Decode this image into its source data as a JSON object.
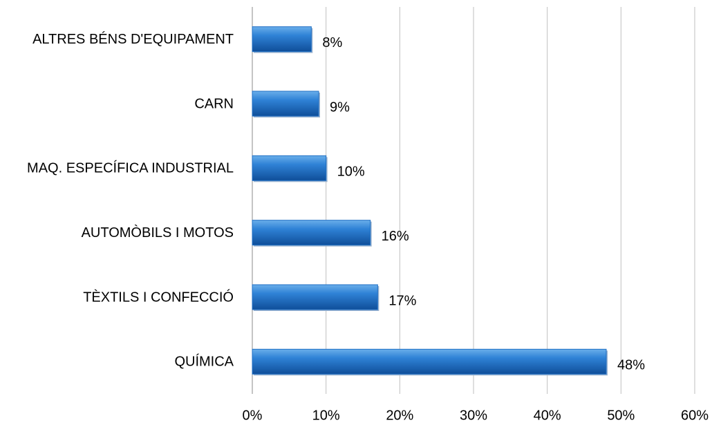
{
  "chart_data": {
    "type": "bar",
    "orientation": "horizontal",
    "categories": [
      "ALTRES BÉNS D'EQUIPAMENT",
      "CARN",
      "MAQ. ESPECÍFICA INDUSTRIAL",
      "AUTOMÒBILS I MOTOS",
      "TÈXTILS I CONFECCIÓ",
      "QUÍMICA"
    ],
    "values": [
      8,
      9,
      10,
      16,
      17,
      48
    ],
    "value_labels": [
      "8%",
      "9%",
      "10%",
      "16%",
      "17%",
      "48%"
    ],
    "color": "#1f6fc4",
    "xlim": [
      0,
      60
    ],
    "xticks": [
      {
        "value": 0,
        "label": "0%"
      },
      {
        "value": 10,
        "label": "10%"
      },
      {
        "value": 20,
        "label": "20%"
      },
      {
        "value": 30,
        "label": "30%"
      },
      {
        "value": 40,
        "label": "40%"
      },
      {
        "value": 50,
        "label": "50%"
      },
      {
        "value": 60,
        "label": "60%"
      }
    ],
    "grid": true
  }
}
